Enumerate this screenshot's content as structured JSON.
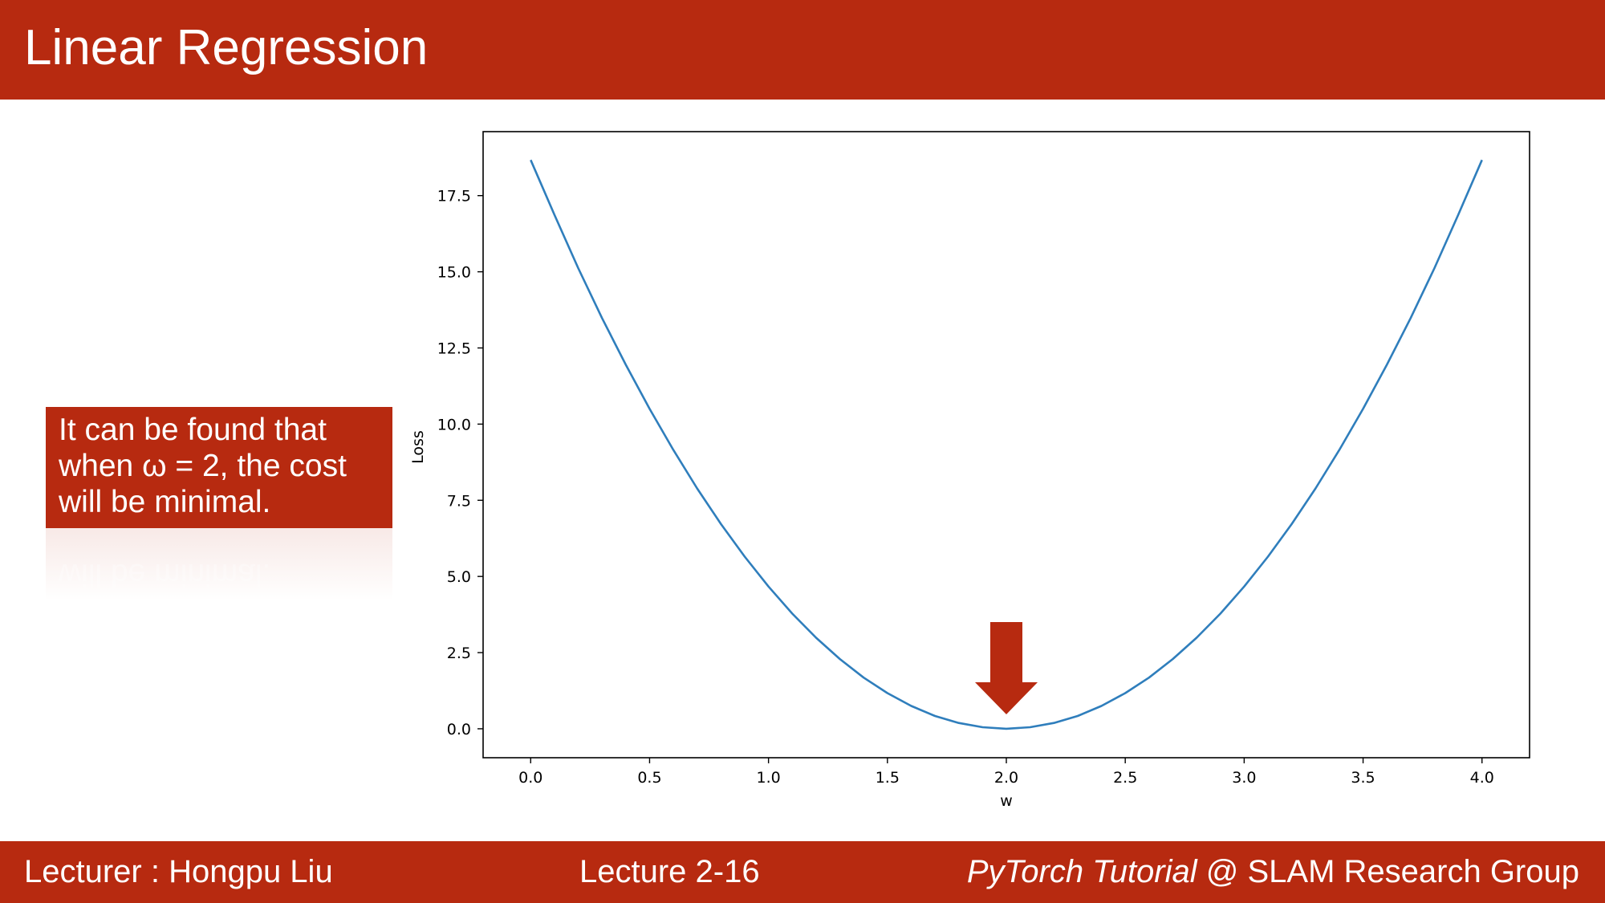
{
  "slide": {
    "title": "Linear Regression",
    "callout_lines": [
      "It can be found that",
      "when ω = 2, the cost",
      "will be minimal."
    ]
  },
  "footer": {
    "lecturer": "Lecturer : Hongpu Liu",
    "lecture": "Lecture 2-16",
    "course_italic": "PyTorch Tutorial",
    "course_rest": " @ SLAM Research Group"
  },
  "colors": {
    "brand": "#b72a10",
    "line": "#2f7ebc"
  },
  "chart_data": {
    "type": "line",
    "xlabel": "w",
    "ylabel": "Loss",
    "xlim": [
      -0.2,
      4.2
    ],
    "ylim": [
      -0.95,
      19.6
    ],
    "xticks": [
      0.0,
      0.5,
      1.0,
      1.5,
      2.0,
      2.5,
      3.0,
      3.5,
      4.0
    ],
    "yticks": [
      0.0,
      2.5,
      5.0,
      7.5,
      10.0,
      12.5,
      15.0,
      17.5
    ],
    "grid": false,
    "series": [
      {
        "x": [
          0.0,
          0.1,
          0.2,
          0.3,
          0.4,
          0.5,
          0.6,
          0.7,
          0.8,
          0.9,
          1.0,
          1.1,
          1.2,
          1.3,
          1.4,
          1.5,
          1.6,
          1.7,
          1.8,
          1.9,
          2.0,
          2.1,
          2.2,
          2.3,
          2.4,
          2.5,
          2.6,
          2.7,
          2.8,
          2.9,
          3.0,
          3.1,
          3.2,
          3.3,
          3.4,
          3.5,
          3.6,
          3.7,
          3.8,
          3.9,
          4.0
        ],
        "values": [
          18.67,
          16.87,
          15.12,
          13.48,
          11.95,
          10.5,
          9.15,
          7.89,
          6.72,
          5.65,
          4.67,
          3.78,
          2.99,
          2.29,
          1.68,
          1.17,
          0.75,
          0.42,
          0.19,
          0.05,
          0.0,
          0.05,
          0.19,
          0.42,
          0.75,
          1.17,
          1.68,
          2.29,
          2.99,
          3.78,
          4.67,
          5.65,
          6.72,
          7.89,
          9.15,
          10.5,
          11.95,
          13.48,
          15.12,
          16.87,
          18.67
        ]
      }
    ],
    "annotation": {
      "type": "arrow",
      "x": 2.0,
      "points_to": "minimum"
    }
  }
}
